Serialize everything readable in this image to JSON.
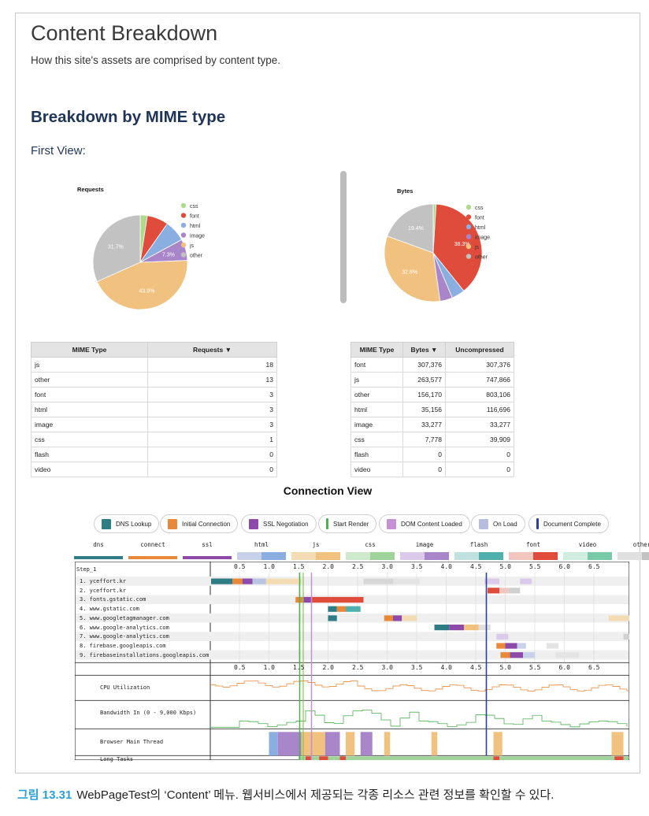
{
  "header": {
    "title": "Content Breakdown",
    "subtitle": "How this site's assets are comprised by content type."
  },
  "section": {
    "title": "Breakdown by MIME type",
    "view_label": "First View:"
  },
  "colors": {
    "css": "#b1d98c",
    "font": "#e04c3c",
    "html": "#8aaee0",
    "image": "#a986c9",
    "js": "#f1c17f",
    "other": "#c2c2c2",
    "heading": "#1f3558"
  },
  "chart_data": [
    {
      "type": "pie",
      "title": "Requests",
      "categories": [
        "css",
        "font",
        "html",
        "image",
        "js",
        "other"
      ],
      "values": [
        1,
        3,
        3,
        3,
        18,
        13
      ],
      "slice_labels": [
        "",
        "",
        "",
        "7.3%",
        "43.9%",
        "31.7%"
      ],
      "legend": "right"
    },
    {
      "type": "pie",
      "title": "Bytes",
      "categories": [
        "css",
        "font",
        "html",
        "image",
        "js",
        "other"
      ],
      "values": [
        7778,
        307376,
        35156,
        33277,
        263577,
        156170
      ],
      "slice_labels": [
        "",
        "38.3%",
        "",
        "",
        "32.8%",
        "19.4%"
      ],
      "legend": "right"
    }
  ],
  "requests_table": {
    "headers": [
      "MIME Type",
      "Requests ▼"
    ],
    "rows": [
      [
        "js",
        "18"
      ],
      [
        "other",
        "13"
      ],
      [
        "font",
        "3"
      ],
      [
        "html",
        "3"
      ],
      [
        "image",
        "3"
      ],
      [
        "css",
        "1"
      ],
      [
        "flash",
        "0"
      ],
      [
        "video",
        "0"
      ]
    ]
  },
  "bytes_table": {
    "headers": [
      "MIME Type",
      "Bytes ▼",
      "Uncompressed"
    ],
    "rows": [
      [
        "font",
        "307,376",
        "307,376"
      ],
      [
        "js",
        "263,577",
        "747,866"
      ],
      [
        "other",
        "156,170",
        "803,106"
      ],
      [
        "html",
        "35,156",
        "116,696"
      ],
      [
        "image",
        "33,277",
        "33,277"
      ],
      [
        "css",
        "7,778",
        "39,909"
      ],
      [
        "flash",
        "0",
        "0"
      ],
      [
        "video",
        "0",
        "0"
      ]
    ]
  },
  "connection_view": {
    "title": "Connection View",
    "legend": [
      {
        "label": "DNS Lookup",
        "color": "#2e7d85"
      },
      {
        "label": "Initial Connection",
        "color": "#e8893a"
      },
      {
        "label": "SSL Negotiation",
        "color": "#8d4aa8"
      },
      {
        "label": "Start Render",
        "color": "#4caf50"
      },
      {
        "label": "DOM Content Loaded",
        "color": "#c78fd4"
      },
      {
        "label": "On Load",
        "color": "#b8bde0"
      },
      {
        "label": "Document Complete",
        "color": "#2a3fa0"
      }
    ],
    "categories": [
      "dns",
      "connect",
      "ssl",
      "html",
      "js",
      "css",
      "image",
      "flash",
      "font",
      "video",
      "other"
    ],
    "step_label": "Step_1",
    "ticks": [
      "0.5",
      "1.0",
      "1.5",
      "2.0",
      "2.5",
      "3.0",
      "3.5",
      "4.0",
      "4.5",
      "5.0",
      "5.5",
      "6.0",
      "6.5"
    ],
    "connections": [
      "1. yceffort.kr",
      "2. yceffort.kr",
      "3. fonts.gstatic.com",
      "4. www.gstatic.com",
      "5. www.googletagmanager.com",
      "6. www.google-analytics.com",
      "7. www.google-analytics.com",
      "8. firebase.googleapis.com",
      "9. firebaseinstallations.googleapis.com"
    ],
    "metrics": [
      "CPU Utilization",
      "Bandwidth In (0 - 9,000 Kbps)",
      "Browser Main Thread",
      "Long Tasks"
    ]
  },
  "caption": {
    "figure": "그림 13.31",
    "text": "WebPageTest의 ‘Content’ 메뉴. 웹서비스에서 제공되는 각종 리소스 관련 정보를 확인할 수 있다."
  }
}
